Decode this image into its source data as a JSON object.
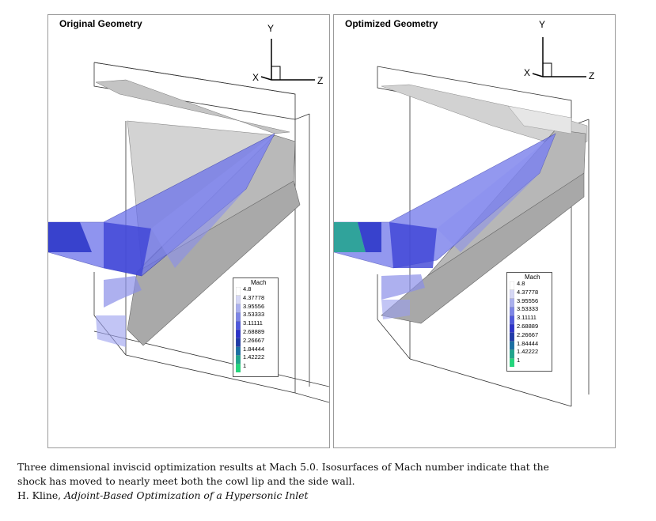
{
  "panels": [
    {
      "title": "Original Geometry",
      "axes": {
        "y": "Y",
        "x": "X",
        "z": "Z"
      },
      "legend": {
        "title": "Mach",
        "levels": [
          "4.8",
          "4.37778",
          "3.95556",
          "3.53333",
          "3.11111",
          "2.68889",
          "2.26667",
          "1.84444",
          "1.42222",
          "1"
        ]
      }
    },
    {
      "title": "Optimized Geometry",
      "axes": {
        "y": "Y",
        "x": "X",
        "z": "Z"
      },
      "legend": {
        "title": "Mach",
        "levels": [
          "4.8",
          "4.37778",
          "3.95556",
          "3.53333",
          "3.11111",
          "2.68889",
          "2.26667",
          "1.84444",
          "1.42222",
          "1"
        ]
      }
    }
  ],
  "legend_colors": [
    "#ffffff",
    "#d6d8f5",
    "#aab0ee",
    "#7d85e6",
    "#4f58dc",
    "#2c32c9",
    "#1f3aa8",
    "#1a6fa3",
    "#1fa58c",
    "#22d77c"
  ],
  "caption": {
    "line1": "Three dimensional inviscid optimization results at Mach 5.0. Isosurfaces of Mach number indicate that the",
    "line2": "shock has moved to nearly meet both the cowl lip and the side wall.",
    "author": "H. Kline, ",
    "work_title": "Adjoint-Based Optimization of a Hypersonic Inlet"
  }
}
